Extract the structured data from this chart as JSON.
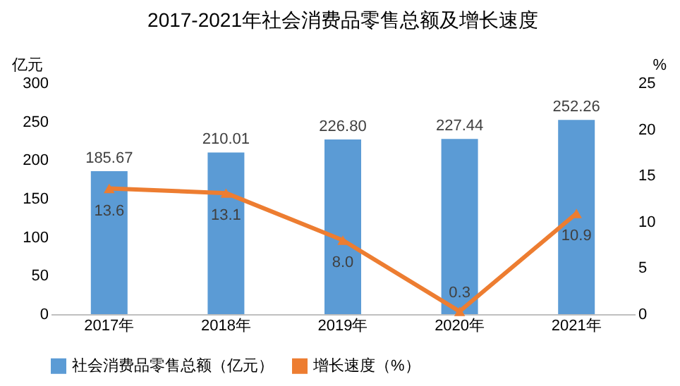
{
  "chart_data": {
    "type": "bar",
    "title": "2017-2021年社会消费品零售总额及增长速度",
    "ylabel": "亿元",
    "y2label": "%",
    "categories": [
      "2017年",
      "2018年",
      "2019年",
      "2020年",
      "2021年"
    ],
    "series": [
      {
        "name": "社会消费品零售总额（亿元）",
        "color": "#5b9bd5",
        "values": [
          185.67,
          210.01,
          226.8,
          227.44,
          252.26
        ],
        "value_labels": [
          "185.67",
          "210.01",
          "226.80",
          "227.44",
          "252.26"
        ]
      },
      {
        "name": "增长速度（%）",
        "type": "line",
        "axis": "y2",
        "color": "#ed7d31",
        "marker": "triangle",
        "values": [
          13.6,
          13.1,
          8.0,
          0.3,
          10.9
        ],
        "value_labels": [
          "13.6",
          "13.1",
          "8.0",
          "0.3",
          "10.9"
        ]
      }
    ],
    "ylim": [
      0,
      300
    ],
    "yticks": [
      0,
      50,
      100,
      150,
      200,
      250,
      300
    ],
    "y2lim": [
      0,
      25
    ],
    "y2ticks": [
      0,
      5,
      10,
      15,
      20,
      25
    ],
    "grid": false,
    "legend": "bottom"
  }
}
